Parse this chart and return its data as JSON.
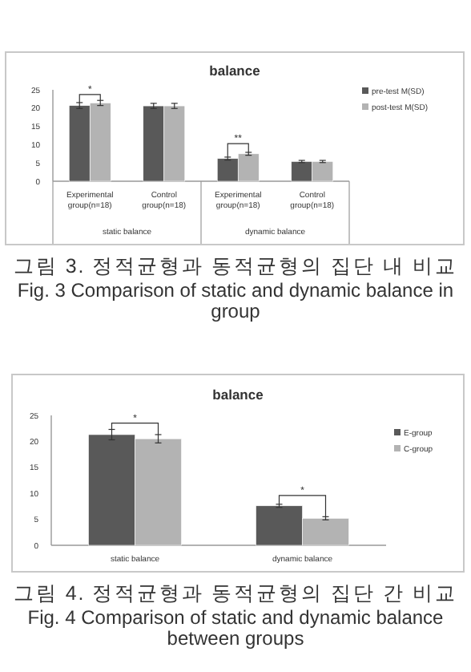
{
  "chart_data": [
    {
      "type": "bar",
      "title": "balance",
      "categories": [
        "Experimental group(n=18)",
        "Control group(n=18)",
        "Experimental group(n=18)",
        "Control group(n=18)"
      ],
      "series": [
        {
          "name": "pre-test M(SD)",
          "color": "#595959",
          "values": [
            20.7,
            20.6,
            6.2,
            5.4
          ],
          "errors": [
            0.8,
            0.7,
            0.4,
            0.3
          ]
        },
        {
          "name": "post-test M(SD)",
          "color": "#b3b3b3",
          "values": [
            21.4,
            20.6,
            7.5,
            5.4
          ],
          "errors": [
            0.7,
            0.7,
            0.4,
            0.3
          ]
        }
      ],
      "ylim": [
        0,
        25
      ],
      "yticks": [
        0,
        5,
        10,
        15,
        20,
        25
      ],
      "legend": "right",
      "grid": false,
      "annotations": [
        "*",
        "**",
        "static balance",
        "dynamic balance",
        "그림 3. 정적균형과 동적균형의 집단 내 비교",
        "Fig. 3 Comparison of static and dynamic balance in group"
      ]
    },
    {
      "type": "bar",
      "title": "balance",
      "categories": [
        "static balance",
        "dynamic balance"
      ],
      "series": [
        {
          "name": "E-group",
          "color": "#595959",
          "values": [
            21.3,
            7.6
          ],
          "errors": [
            1.0,
            0.3
          ]
        },
        {
          "name": "C-group",
          "color": "#b3b3b3",
          "values": [
            20.5,
            5.2
          ],
          "errors": [
            0.8,
            0.3
          ]
        }
      ],
      "ylim": [
        0,
        25
      ],
      "yticks": [
        0,
        5,
        10,
        15,
        20,
        25
      ],
      "legend": "right",
      "grid": false,
      "annotations": [
        "*",
        "*",
        "그림 4. 정적균형과 동적균형의 집단 간 비교",
        "Fig. 4 Comparison of static and dynamic balance between groups"
      ]
    }
  ]
}
